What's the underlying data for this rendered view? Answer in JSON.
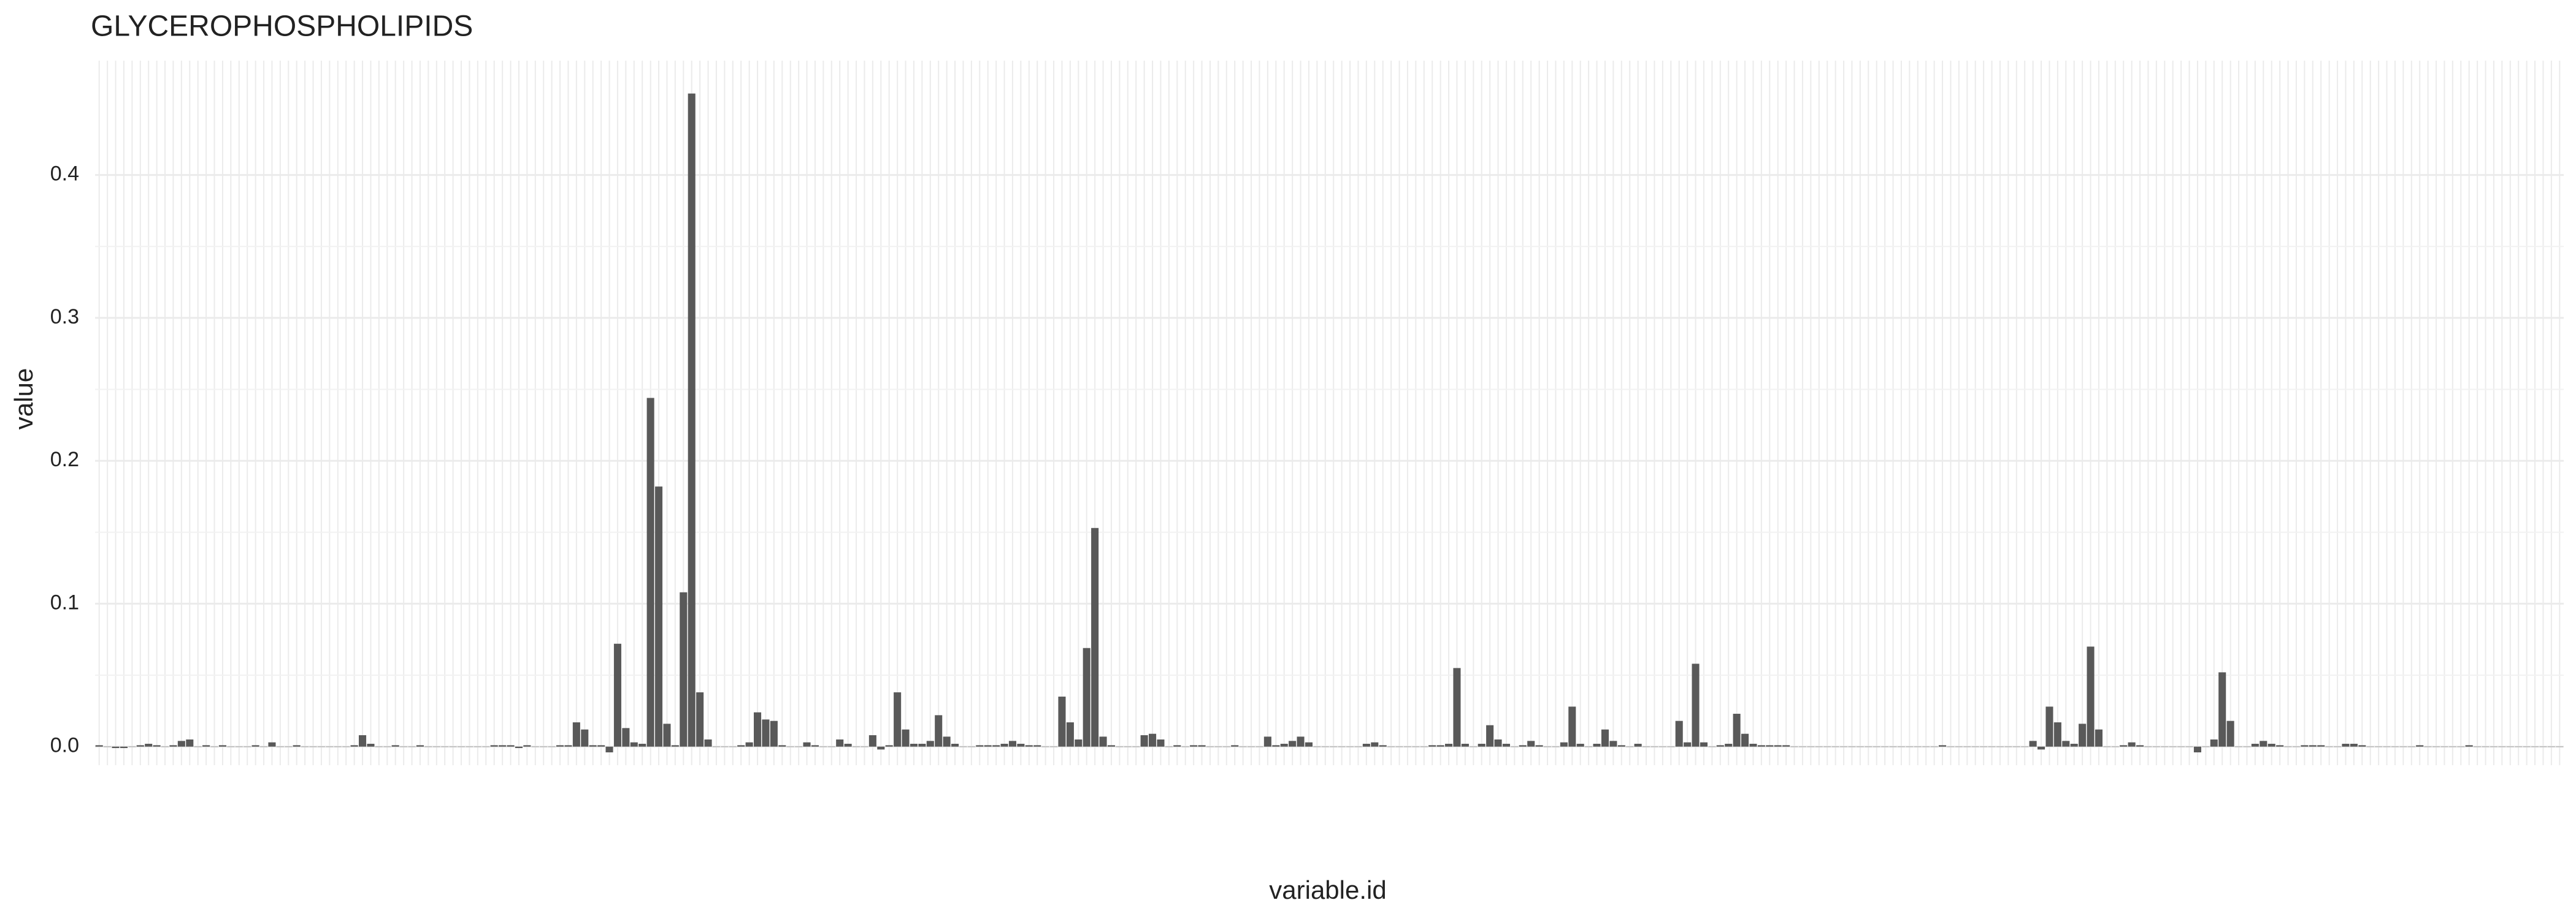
{
  "chart_data": {
    "type": "bar",
    "title": "GLYCEROPHOSPHOLIPIDS",
    "x_label": "variable.id",
    "y_label": "value",
    "color": "#595959",
    "grid": true,
    "ylim": [
      -0.013,
      0.48
    ],
    "yticks": [
      {
        "value": 0,
        "label": "0.0"
      },
      0.1,
      0.2,
      0.3,
      0.4
    ],
    "categories": [
      null,
      null,
      null,
      null,
      null,
      null,
      null,
      null,
      null,
      null,
      null,
      null,
      null,
      null,
      null,
      null,
      null,
      null,
      null,
      null,
      null,
      null,
      null,
      null,
      null,
      null,
      null,
      null,
      null,
      null,
      null,
      null,
      null,
      null,
      null,
      null,
      null,
      null,
      null,
      null,
      null,
      null,
      null,
      null,
      null,
      null,
      null,
      null,
      null,
      null,
      null,
      null,
      null,
      null,
      null,
      null,
      null,
      null,
      null,
      null,
      null,
      null,
      null,
      null,
      null,
      null,
      null,
      null,
      null,
      null,
      null,
      null,
      null,
      null,
      null,
      null,
      null,
      null,
      null,
      null,
      null,
      null,
      null,
      null,
      null,
      null,
      null,
      null,
      null,
      null,
      null,
      null,
      null,
      null,
      null,
      null,
      null,
      null,
      null,
      null,
      null,
      null,
      null,
      null,
      null,
      null,
      null,
      null,
      null,
      null,
      null,
      null,
      null,
      null,
      null,
      null,
      null,
      null,
      null,
      null,
      null,
      null,
      null,
      null,
      null,
      null,
      null,
      null,
      null,
      null,
      null,
      null,
      null,
      null,
      null,
      null,
      null,
      null,
      null,
      null,
      null,
      null,
      null,
      null,
      null,
      null,
      null,
      null,
      null,
      null,
      null,
      null,
      null,
      null,
      null,
      null,
      null,
      null,
      null,
      null,
      null,
      null,
      null,
      null,
      null,
      null,
      null,
      null,
      null,
      null,
      null,
      null,
      null,
      null,
      null,
      null,
      null,
      null,
      null,
      null,
      null,
      null,
      null,
      null,
      null,
      null,
      null,
      null,
      null,
      null,
      null,
      null,
      null,
      null,
      null,
      null,
      null,
      null,
      null,
      null,
      null,
      null,
      null,
      null,
      null,
      null,
      null,
      null,
      null,
      null,
      null,
      null,
      null,
      null,
      null,
      null,
      null,
      null,
      null,
      null,
      null,
      null,
      null,
      null,
      null,
      null,
      null,
      null,
      null,
      null,
      null,
      null,
      null,
      null,
      null,
      null,
      null,
      null,
      null,
      null,
      null,
      null,
      null,
      null,
      null,
      null,
      null,
      null,
      null,
      null,
      null,
      null,
      null,
      null,
      null,
      null,
      null,
      null,
      null,
      null,
      null,
      null,
      null,
      null,
      null,
      null,
      null,
      null,
      null,
      null,
      null,
      null,
      null,
      null,
      null,
      null,
      null,
      null,
      null,
      null,
      null,
      null,
      null,
      null,
      null,
      null,
      null,
      null,
      null,
      null,
      null,
      null,
      null,
      null,
      null,
      null,
      null,
      null,
      null,
      null
    ],
    "values": [
      0.001,
      0,
      -0.001,
      -0.001,
      0,
      0.001,
      0.002,
      0.001,
      0,
      0.001,
      0.004,
      0.005,
      0,
      0.001,
      0,
      0.001,
      0,
      0,
      0,
      0.001,
      0,
      0.003,
      0,
      0,
      0.001,
      0,
      0,
      0,
      0,
      0,
      0,
      0.001,
      0.008,
      0.002,
      0,
      0,
      0.001,
      0,
      0,
      0.001,
      0,
      0,
      0,
      0,
      0,
      0,
      0,
      0,
      0.001,
      0.001,
      0.001,
      -0.001,
      0.001,
      0,
      0,
      0,
      0.001,
      0.001,
      0.017,
      0.012,
      0.001,
      0.001,
      -0.004,
      0.072,
      0.013,
      0.003,
      0.002,
      0.244,
      0.182,
      0.016,
      0.001,
      0.108,
      0.457,
      0.038,
      0.005,
      0,
      0,
      0,
      0.001,
      0.003,
      0.024,
      0.019,
      0.018,
      0.001,
      0,
      0,
      0.003,
      0.001,
      0,
      0,
      0.005,
      0.002,
      0,
      0,
      0.008,
      -0.002,
      0.001,
      0.038,
      0.012,
      0.002,
      0.002,
      0.004,
      0.022,
      0.007,
      0.002,
      0,
      0,
      0.001,
      0.001,
      0.001,
      0.002,
      0.004,
      0.002,
      0.001,
      0.001,
      0,
      0,
      0.035,
      0.017,
      0.005,
      0.069,
      0.153,
      0.007,
      0.001,
      0,
      0,
      0,
      0.008,
      0.009,
      0.005,
      0,
      0.001,
      0,
      0.001,
      0.001,
      0,
      0,
      0,
      0.001,
      0,
      0,
      0,
      0.007,
      0.001,
      0.002,
      0.004,
      0.007,
      0.003,
      0,
      0,
      0,
      0,
      0,
      0,
      0.002,
      0.003,
      0.001,
      0,
      0,
      0,
      0,
      0,
      0.001,
      0.001,
      0.002,
      0.055,
      0.002,
      0,
      0.002,
      0.015,
      0.005,
      0.002,
      0,
      0.001,
      0.004,
      0.001,
      0,
      0,
      0.003,
      0.028,
      0.002,
      0,
      0.002,
      0.012,
      0.004,
      0.001,
      0,
      0.002,
      0,
      0,
      0,
      0,
      0.018,
      0.003,
      0.058,
      0.003,
      0,
      0.001,
      0.002,
      0.023,
      0.009,
      0.002,
      0.001,
      0.001,
      0.001,
      0.001,
      0,
      0,
      0,
      0,
      0,
      0,
      0,
      0,
      0,
      0,
      0,
      0,
      0,
      0,
      0,
      0,
      0,
      0,
      0.001,
      0,
      0,
      0,
      0,
      0,
      0,
      0,
      0,
      0,
      0,
      0.004,
      -0.002,
      0.028,
      0.017,
      0.004,
      0.002,
      0.016,
      0.07,
      0.012,
      0,
      0,
      0.001,
      0.003,
      0.001,
      0,
      0,
      0,
      0,
      0,
      0,
      -0.004,
      0,
      0.005,
      0.052,
      0.018,
      0,
      0,
      0.002,
      0.004,
      0.002,
      0.001,
      0,
      0,
      0.001,
      0.001,
      0.001,
      0,
      0,
      0.002,
      0.002,
      0.001,
      0,
      0,
      0,
      0,
      0,
      0,
      0.001,
      0,
      0,
      0,
      0,
      0,
      0.001,
      0,
      0,
      0,
      0,
      0,
      0,
      0,
      0,
      0,
      0,
      0
    ]
  }
}
